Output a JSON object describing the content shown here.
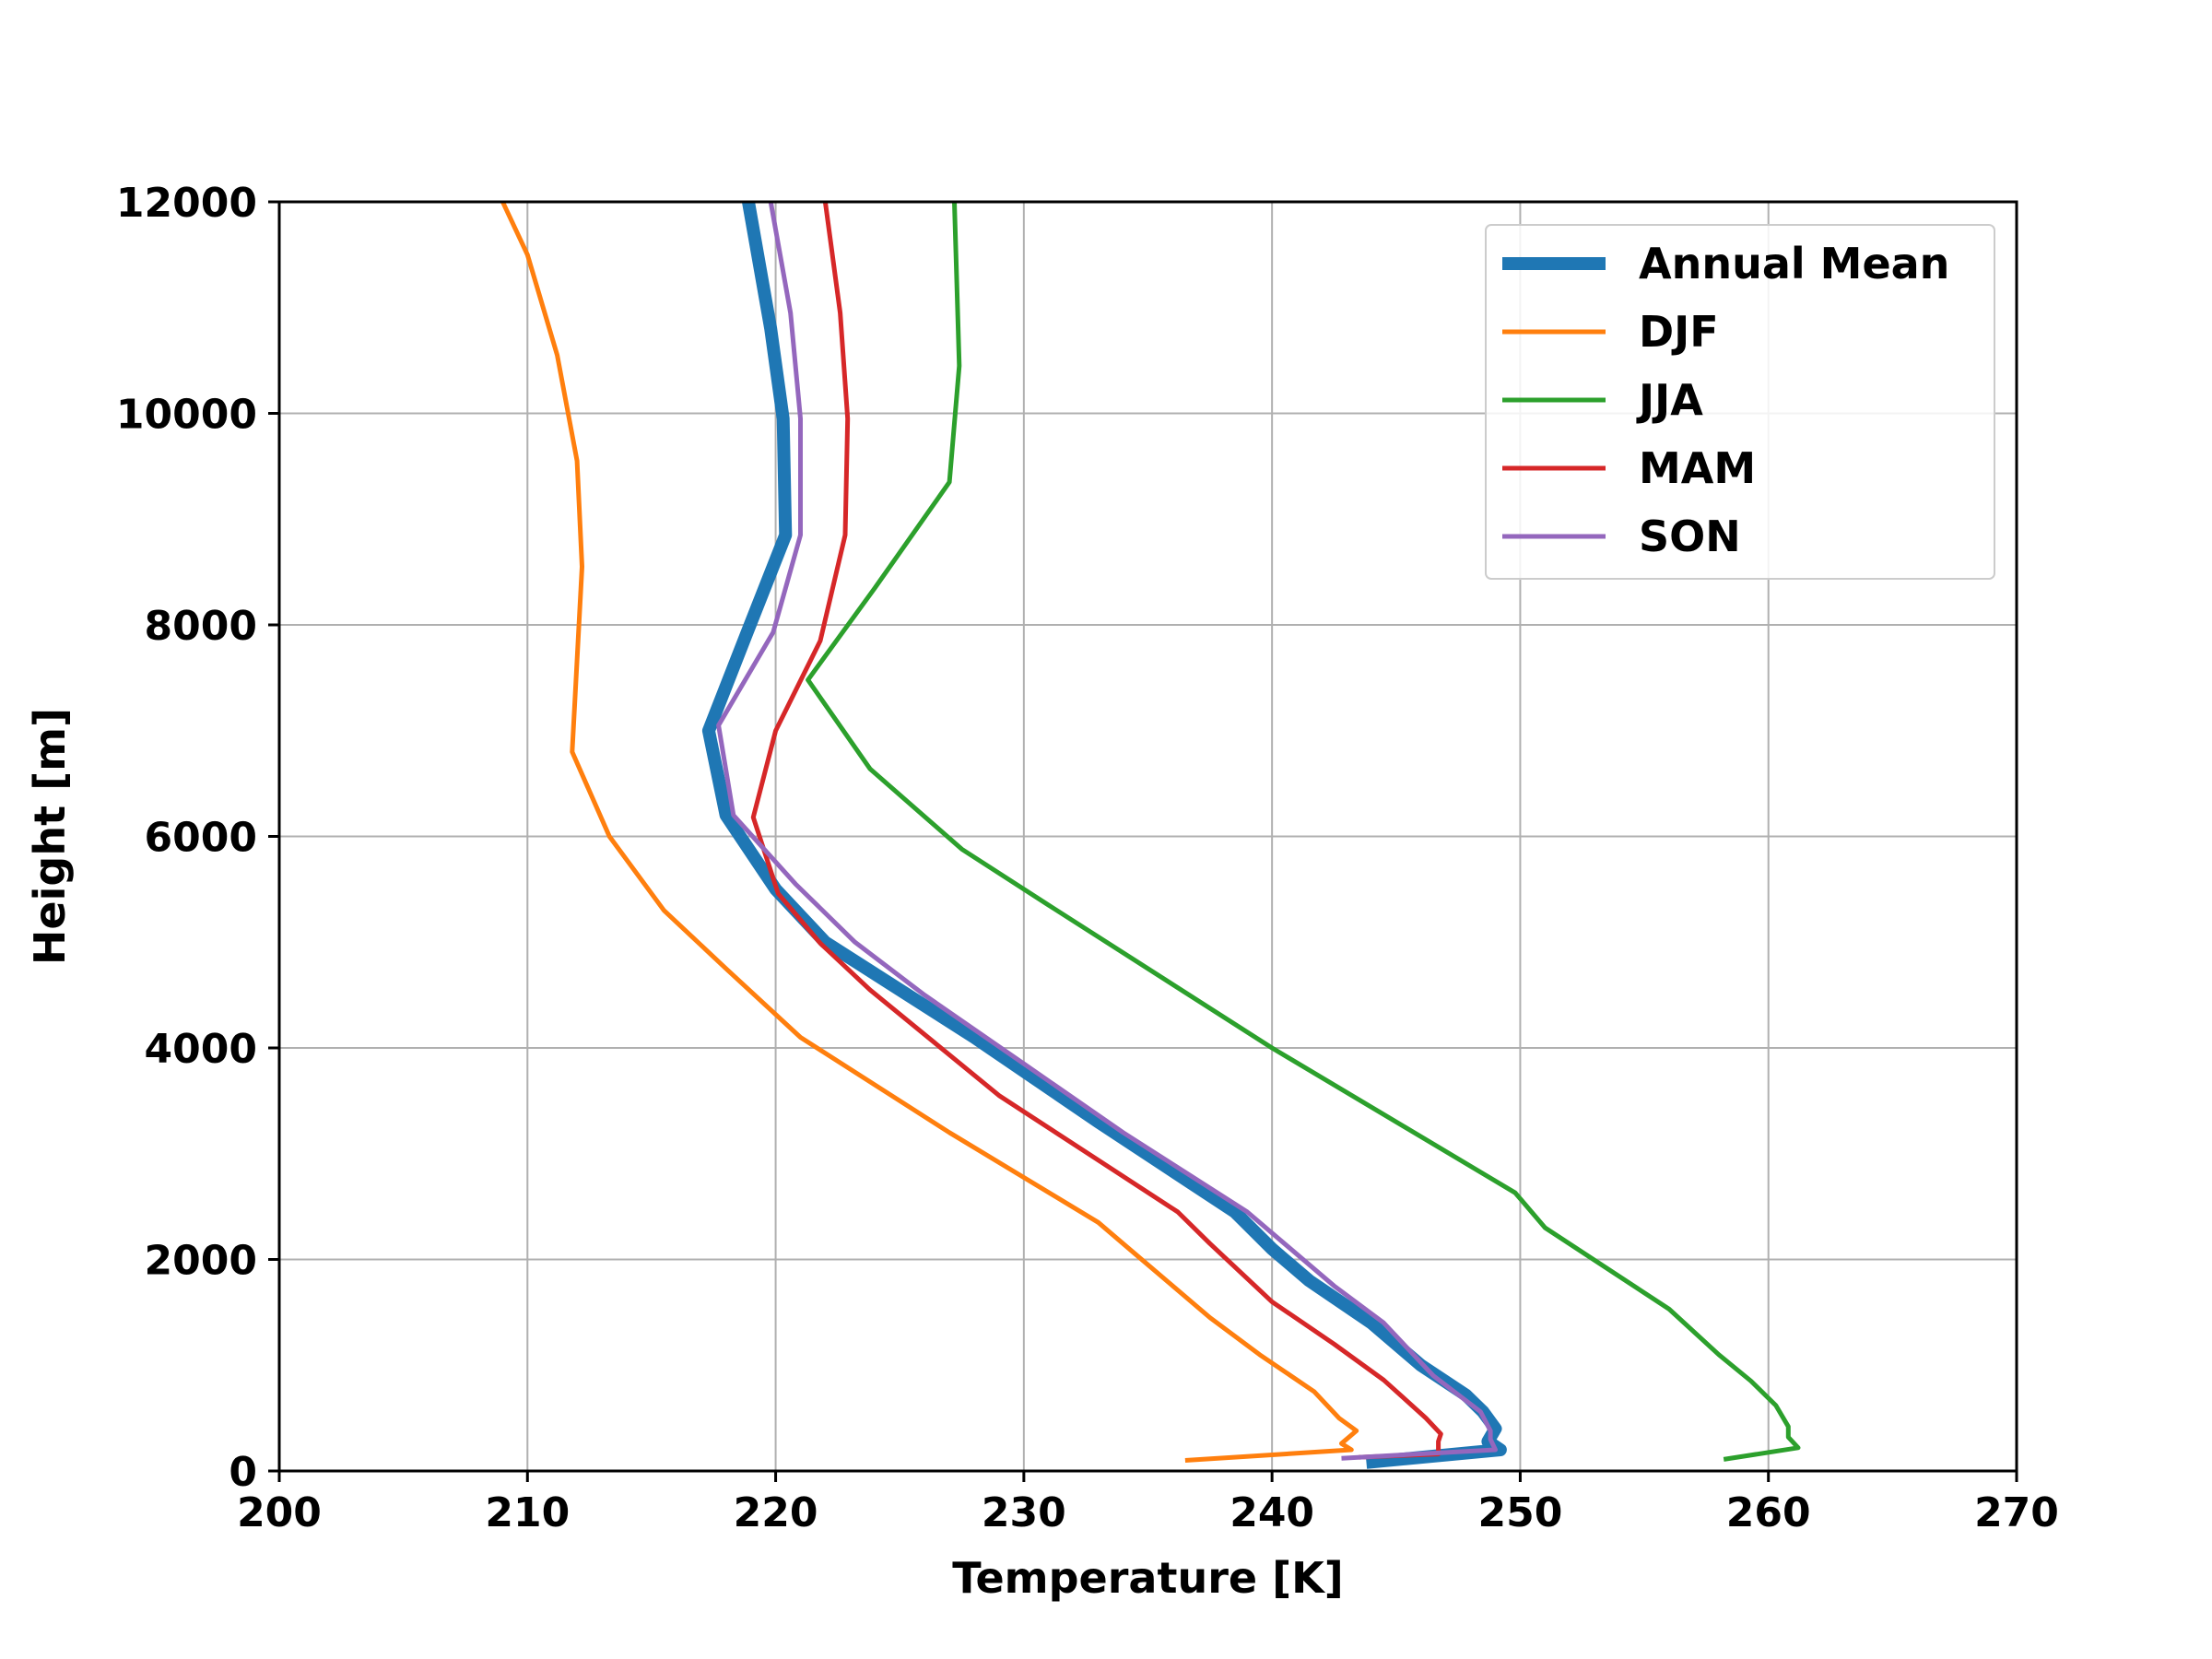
{
  "chart_data": {
    "type": "line",
    "title": "",
    "xlabel": "Temperature [K]",
    "ylabel": "Height [m]",
    "xlim": [
      200,
      270
    ],
    "ylim": [
      0,
      12000
    ],
    "xticks": [
      "200",
      "210",
      "220",
      "230",
      "240",
      "250",
      "260",
      "270"
    ],
    "yticks": [
      "0",
      "2000",
      "4000",
      "6000",
      "8000",
      "10000",
      "12000"
    ],
    "grid": true,
    "legend_position": "top-right",
    "series": [
      {
        "name": "Annual Mean",
        "color": "#1f77b4",
        "emphasis": "thick",
        "points": [
          [
            243.8,
            80
          ],
          [
            249.2,
            200
          ],
          [
            248.7,
            280
          ],
          [
            249.0,
            400
          ],
          [
            248.5,
            560
          ],
          [
            247.8,
            720
          ],
          [
            246.0,
            1000
          ],
          [
            244.0,
            1400
          ],
          [
            241.5,
            1800
          ],
          [
            240.0,
            2100
          ],
          [
            238.5,
            2450
          ],
          [
            233.0,
            3300
          ],
          [
            228.0,
            4100
          ],
          [
            222.0,
            5000
          ],
          [
            220.0,
            5500
          ],
          [
            218.0,
            6200
          ],
          [
            217.3,
            7000
          ],
          [
            218.8,
            7900
          ],
          [
            220.4,
            8850
          ],
          [
            220.3,
            9950
          ],
          [
            219.8,
            10800
          ],
          [
            218.9,
            12000
          ]
        ]
      },
      {
        "name": "DJF",
        "color": "#ff7f0e",
        "emphasis": "normal",
        "points": [
          [
            236.5,
            100
          ],
          [
            243.2,
            200
          ],
          [
            242.8,
            260
          ],
          [
            243.4,
            380
          ],
          [
            242.7,
            500
          ],
          [
            241.7,
            750
          ],
          [
            239.5,
            1100
          ],
          [
            237.5,
            1450
          ],
          [
            234.5,
            2050
          ],
          [
            233.0,
            2350
          ],
          [
            227.0,
            3200
          ],
          [
            221.0,
            4100
          ],
          [
            218.0,
            4750
          ],
          [
            215.5,
            5300
          ],
          [
            213.3,
            6000
          ],
          [
            211.8,
            6800
          ],
          [
            212.2,
            8550
          ],
          [
            212.0,
            9550
          ],
          [
            211.2,
            10550
          ],
          [
            210.0,
            11500
          ],
          [
            209.0,
            12000
          ]
        ]
      },
      {
        "name": "JJA",
        "color": "#2ca02c",
        "emphasis": "normal",
        "points": [
          [
            258.2,
            110
          ],
          [
            261.2,
            220
          ],
          [
            260.8,
            320
          ],
          [
            260.8,
            420
          ],
          [
            260.3,
            620
          ],
          [
            259.3,
            850
          ],
          [
            258.0,
            1100
          ],
          [
            256.0,
            1530
          ],
          [
            251.0,
            2300
          ],
          [
            249.8,
            2630
          ],
          [
            240.0,
            4000
          ],
          [
            231.0,
            5350
          ],
          [
            227.5,
            5880
          ],
          [
            223.8,
            6640
          ],
          [
            221.3,
            7480
          ],
          [
            224.0,
            8350
          ],
          [
            227.0,
            9350
          ],
          [
            227.4,
            10450
          ],
          [
            227.2,
            12000
          ]
        ]
      },
      {
        "name": "MAM",
        "color": "#d62728",
        "emphasis": "normal",
        "points": [
          [
            243.5,
            130
          ],
          [
            246.7,
            160
          ],
          [
            246.7,
            280
          ],
          [
            246.8,
            350
          ],
          [
            246.2,
            500
          ],
          [
            244.5,
            860
          ],
          [
            242.5,
            1200
          ],
          [
            240.0,
            1600
          ],
          [
            237.5,
            2150
          ],
          [
            236.2,
            2450
          ],
          [
            229.0,
            3550
          ],
          [
            223.8,
            4550
          ],
          [
            221.8,
            4990
          ],
          [
            220.1,
            5460
          ],
          [
            219.1,
            6180
          ],
          [
            220.0,
            7000
          ],
          [
            221.8,
            7850
          ],
          [
            222.8,
            8850
          ],
          [
            222.9,
            9950
          ],
          [
            222.6,
            10950
          ],
          [
            222.0,
            12000
          ]
        ]
      },
      {
        "name": "SON",
        "color": "#9467bd",
        "emphasis": "normal",
        "points": [
          [
            242.8,
            120
          ],
          [
            249.0,
            200
          ],
          [
            248.8,
            300
          ],
          [
            248.8,
            380
          ],
          [
            248.4,
            560
          ],
          [
            246.5,
            900
          ],
          [
            244.5,
            1400
          ],
          [
            242.5,
            1750
          ],
          [
            240.5,
            2150
          ],
          [
            239.0,
            2450
          ],
          [
            234.0,
            3200
          ],
          [
            230.0,
            3850
          ],
          [
            226.0,
            4500
          ],
          [
            223.2,
            5000
          ],
          [
            220.8,
            5550
          ],
          [
            218.3,
            6200
          ],
          [
            217.7,
            7050
          ],
          [
            219.9,
            7930
          ],
          [
            221.0,
            8850
          ],
          [
            221.0,
            9950
          ],
          [
            220.6,
            10950
          ],
          [
            219.8,
            12000
          ]
        ]
      }
    ]
  }
}
